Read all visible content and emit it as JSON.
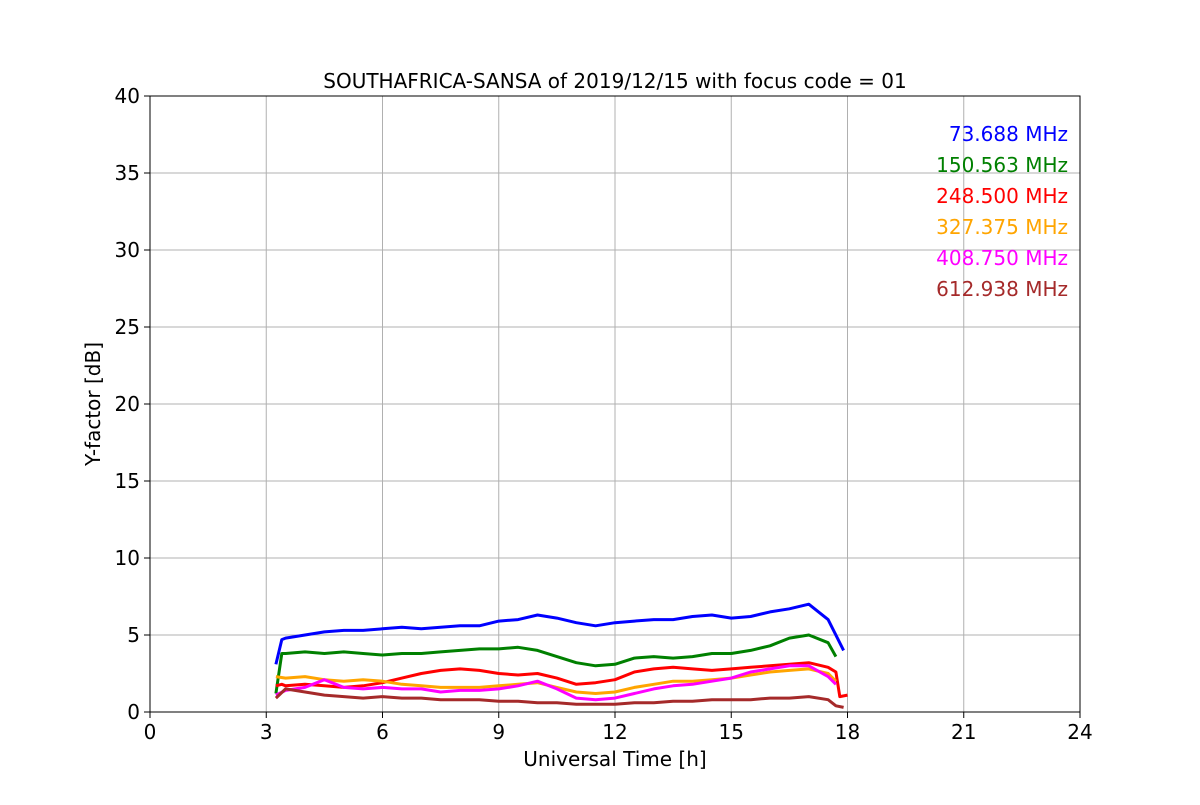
{
  "chart_data": {
    "type": "line",
    "title": "SOUTHAFRICA-SANSA of 2019/12/15 with focus code = 01",
    "xlabel": "Universal Time [h]",
    "ylabel": "Y-factor [dB]",
    "xlim": [
      0,
      24
    ],
    "ylim": [
      0,
      40
    ],
    "xticks": [
      0,
      3,
      6,
      9,
      12,
      15,
      18,
      21,
      24
    ],
    "yticks": [
      0,
      5,
      10,
      15,
      20,
      25,
      30,
      35,
      40
    ],
    "grid": true,
    "legend_position": "top-right",
    "series": [
      {
        "name": "73.688 MHz",
        "color": "#0000ff",
        "x": [
          3.25,
          3.4,
          3.5,
          4.0,
          4.5,
          5.0,
          5.5,
          6.0,
          6.5,
          7.0,
          7.5,
          8.0,
          8.5,
          9.0,
          9.5,
          10.0,
          10.5,
          11.0,
          11.5,
          12.0,
          12.5,
          13.0,
          13.5,
          14.0,
          14.5,
          15.0,
          15.5,
          16.0,
          16.5,
          17.0,
          17.5,
          17.9
        ],
        "y": [
          3.1,
          4.7,
          4.8,
          5.0,
          5.2,
          5.3,
          5.3,
          5.4,
          5.5,
          5.4,
          5.5,
          5.6,
          5.6,
          5.9,
          6.0,
          6.3,
          6.1,
          5.8,
          5.6,
          5.8,
          5.9,
          6.0,
          6.0,
          6.2,
          6.3,
          6.1,
          6.2,
          6.5,
          6.7,
          7.0,
          6.0,
          4.0
        ]
      },
      {
        "name": "150.563 MHz",
        "color": "#008000",
        "x": [
          3.25,
          3.4,
          3.5,
          4.0,
          4.5,
          5.0,
          5.5,
          6.0,
          6.5,
          7.0,
          7.5,
          8.0,
          8.5,
          9.0,
          9.5,
          10.0,
          10.5,
          11.0,
          11.5,
          12.0,
          12.5,
          13.0,
          13.5,
          14.0,
          14.5,
          15.0,
          15.5,
          16.0,
          16.5,
          17.0,
          17.5,
          17.7
        ],
        "y": [
          1.2,
          3.8,
          3.8,
          3.9,
          3.8,
          3.9,
          3.8,
          3.7,
          3.8,
          3.8,
          3.9,
          4.0,
          4.1,
          4.1,
          4.2,
          4.0,
          3.6,
          3.2,
          3.0,
          3.1,
          3.5,
          3.6,
          3.5,
          3.6,
          3.8,
          3.8,
          4.0,
          4.3,
          4.8,
          5.0,
          4.5,
          3.6
        ]
      },
      {
        "name": "248.500 MHz",
        "color": "#ff0000",
        "x": [
          3.25,
          3.4,
          3.5,
          4.0,
          4.5,
          5.0,
          5.5,
          6.0,
          6.5,
          7.0,
          7.5,
          8.0,
          8.5,
          9.0,
          9.5,
          10.0,
          10.5,
          11.0,
          11.5,
          12.0,
          12.5,
          13.0,
          13.5,
          14.0,
          14.5,
          15.0,
          15.5,
          16.0,
          16.5,
          17.0,
          17.5,
          17.7,
          17.8,
          18.0
        ],
        "y": [
          1.7,
          1.8,
          1.7,
          1.8,
          1.7,
          1.6,
          1.7,
          1.9,
          2.2,
          2.5,
          2.7,
          2.8,
          2.7,
          2.5,
          2.4,
          2.5,
          2.2,
          1.8,
          1.9,
          2.1,
          2.6,
          2.8,
          2.9,
          2.8,
          2.7,
          2.8,
          2.9,
          3.0,
          3.1,
          3.2,
          2.9,
          2.6,
          1.0,
          1.1
        ]
      },
      {
        "name": "327.375 MHz",
        "color": "#ffa500",
        "x": [
          3.25,
          3.5,
          4.0,
          4.5,
          5.0,
          5.5,
          6.0,
          6.5,
          7.0,
          7.5,
          8.0,
          8.5,
          9.0,
          9.5,
          10.0,
          10.5,
          11.0,
          11.5,
          12.0,
          12.5,
          13.0,
          13.5,
          14.0,
          14.5,
          15.0,
          15.5,
          16.0,
          16.5,
          17.0,
          17.5,
          17.7
        ],
        "y": [
          2.3,
          2.2,
          2.3,
          2.1,
          2.0,
          2.1,
          2.0,
          1.8,
          1.7,
          1.6,
          1.6,
          1.6,
          1.7,
          1.8,
          1.9,
          1.6,
          1.3,
          1.2,
          1.3,
          1.6,
          1.8,
          2.0,
          2.0,
          2.1,
          2.2,
          2.4,
          2.6,
          2.7,
          2.8,
          2.5,
          2.0
        ]
      },
      {
        "name": "408.750 MHz",
        "color": "#ff00ff",
        "x": [
          3.25,
          3.5,
          4.0,
          4.5,
          5.0,
          5.5,
          6.0,
          6.5,
          7.0,
          7.5,
          8.0,
          8.5,
          9.0,
          9.5,
          10.0,
          10.5,
          11.0,
          11.5,
          12.0,
          12.5,
          13.0,
          13.5,
          14.0,
          14.5,
          15.0,
          15.5,
          16.0,
          16.5,
          17.0,
          17.5,
          17.7
        ],
        "y": [
          1.1,
          1.4,
          1.6,
          2.1,
          1.6,
          1.5,
          1.6,
          1.5,
          1.5,
          1.3,
          1.4,
          1.4,
          1.5,
          1.7,
          2.0,
          1.5,
          0.9,
          0.8,
          0.9,
          1.2,
          1.5,
          1.7,
          1.8,
          2.0,
          2.2,
          2.6,
          2.8,
          3.0,
          3.0,
          2.3,
          1.8
        ]
      },
      {
        "name": "612.938 MHz",
        "color": "#a52a2a",
        "x": [
          3.25,
          3.5,
          4.0,
          4.5,
          5.0,
          5.5,
          6.0,
          6.5,
          7.0,
          7.5,
          8.0,
          8.5,
          9.0,
          9.5,
          10.0,
          10.5,
          11.0,
          11.5,
          12.0,
          12.5,
          13.0,
          13.5,
          14.0,
          14.5,
          15.0,
          15.5,
          16.0,
          16.5,
          17.0,
          17.5,
          17.7,
          17.9
        ],
        "y": [
          0.9,
          1.5,
          1.3,
          1.1,
          1.0,
          0.9,
          1.0,
          0.9,
          0.9,
          0.8,
          0.8,
          0.8,
          0.7,
          0.7,
          0.6,
          0.6,
          0.5,
          0.5,
          0.5,
          0.6,
          0.6,
          0.7,
          0.7,
          0.8,
          0.8,
          0.8,
          0.9,
          0.9,
          1.0,
          0.8,
          0.4,
          0.3
        ]
      }
    ]
  }
}
